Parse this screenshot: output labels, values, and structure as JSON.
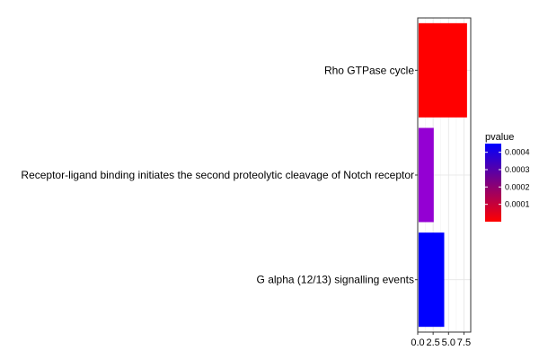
{
  "chart_data": {
    "type": "bar",
    "orientation": "horizontal",
    "categories": [
      "Rho GTPase cycle",
      "Receptor-ligand binding initiates the second proteolytic cleavage of Notch receptor",
      "G alpha (12/13) signalling events"
    ],
    "values": [
      8,
      2.6,
      4.3
    ],
    "pvalues": [
      1e-05,
      0.00034,
      0.00043
    ],
    "bar_colors": [
      "#ff0000",
      "#9400d3",
      "#0000ff"
    ],
    "xlim": [
      0,
      8.6
    ],
    "x_ticks": [
      0,
      2.5,
      5,
      7.5
    ],
    "x_tick_labels": [
      "0.0",
      "2.5",
      "5.0",
      "7.5"
    ],
    "grid": true,
    "xlabel": "",
    "ylabel": "",
    "legend": {
      "title": "pvalue",
      "placement": "right",
      "low_color": "#ff0000",
      "high_color": "#0000ff",
      "range": [
        0,
        0.00045
      ],
      "ticks": [
        0.0001,
        0.0002,
        0.0003,
        0.0004
      ],
      "tick_labels": [
        "0.0001",
        "0.0002",
        "0.0003",
        "0.0004"
      ]
    }
  }
}
